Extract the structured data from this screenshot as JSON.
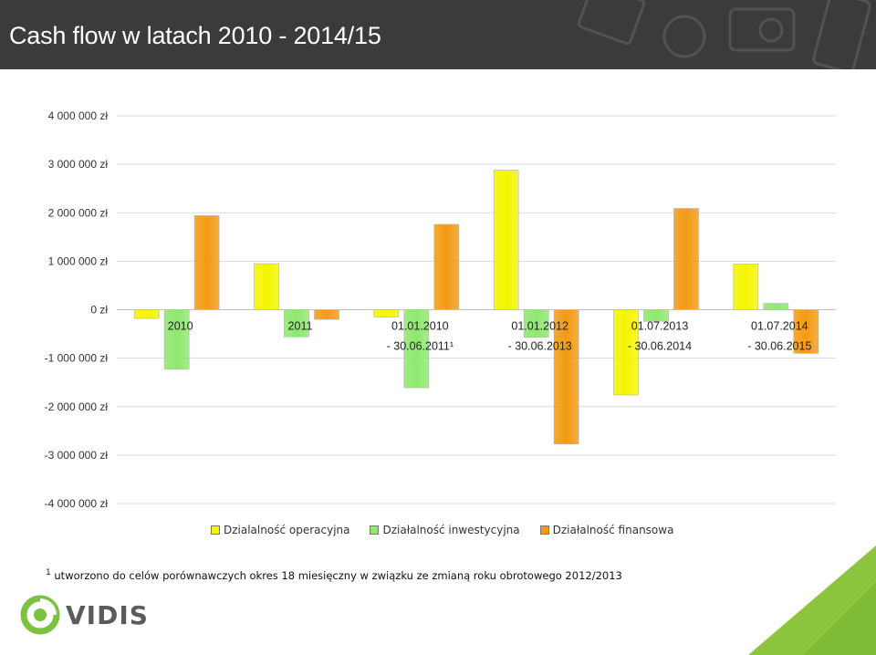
{
  "header": {
    "title": "Cash flow w latach 2010 - 2014/15"
  },
  "colors": {
    "operacyjna": "#f5f500",
    "inwestycyjna": "#8ee86e",
    "finansowa": "#f39a12",
    "header_bg": "#3b3b3b"
  },
  "chart_data": {
    "type": "bar",
    "categories": [
      [
        "2010"
      ],
      [
        "2011"
      ],
      [
        "01.01.2010",
        "- 30.06.2011¹"
      ],
      [
        "01.01.2012",
        "- 30.06.2013"
      ],
      [
        "01.07.2013",
        "- 30.06.2014"
      ],
      [
        "01.07.2014",
        "- 30.06.2015"
      ]
    ],
    "series": [
      {
        "name": "Działalność operacyjna",
        "color": "#f5f500",
        "values": [
          -180000,
          950000,
          -150000,
          2880000,
          -1760000,
          940000
        ]
      },
      {
        "name": "Działalność inwestycyjna",
        "color": "#8ee86e",
        "values": [
          -1230000,
          -560000,
          -1610000,
          -570000,
          -240000,
          130000
        ]
      },
      {
        "name": "Działalność finansowa",
        "color": "#f39a12",
        "values": [
          1940000,
          -200000,
          1760000,
          -2770000,
          2090000,
          -900000
        ]
      }
    ],
    "ylim": [
      -4000000,
      4000000
    ],
    "yticks": [
      {
        "value": 4000000,
        "label": "4 000 000 zł"
      },
      {
        "value": 3000000,
        "label": "3 000 000 zł"
      },
      {
        "value": 2000000,
        "label": "2 000 000 zł"
      },
      {
        "value": 1000000,
        "label": "1 000 000 zł"
      },
      {
        "value": 0,
        "label": "0 zł"
      },
      {
        "value": -1000000,
        "label": "-1 000 000 zł"
      },
      {
        "value": -2000000,
        "label": "-2 000 000 zł"
      },
      {
        "value": -3000000,
        "label": "-3 000 000 zł"
      },
      {
        "value": -4000000,
        "label": "-4 000 000 zł"
      }
    ],
    "grid": true,
    "legend_position": "bottom"
  },
  "legend": {
    "items": [
      "Dzialalność operacyjna",
      "Działalność inwestycyjna",
      "Działalność finansowa"
    ]
  },
  "footnote": {
    "mark": "1",
    "text": " utworzono do celów porównawczych okres 18 miesięczny w związku ze zmianą roku obrotowego 2012/2013"
  },
  "logo": {
    "text": "VIDIS"
  }
}
